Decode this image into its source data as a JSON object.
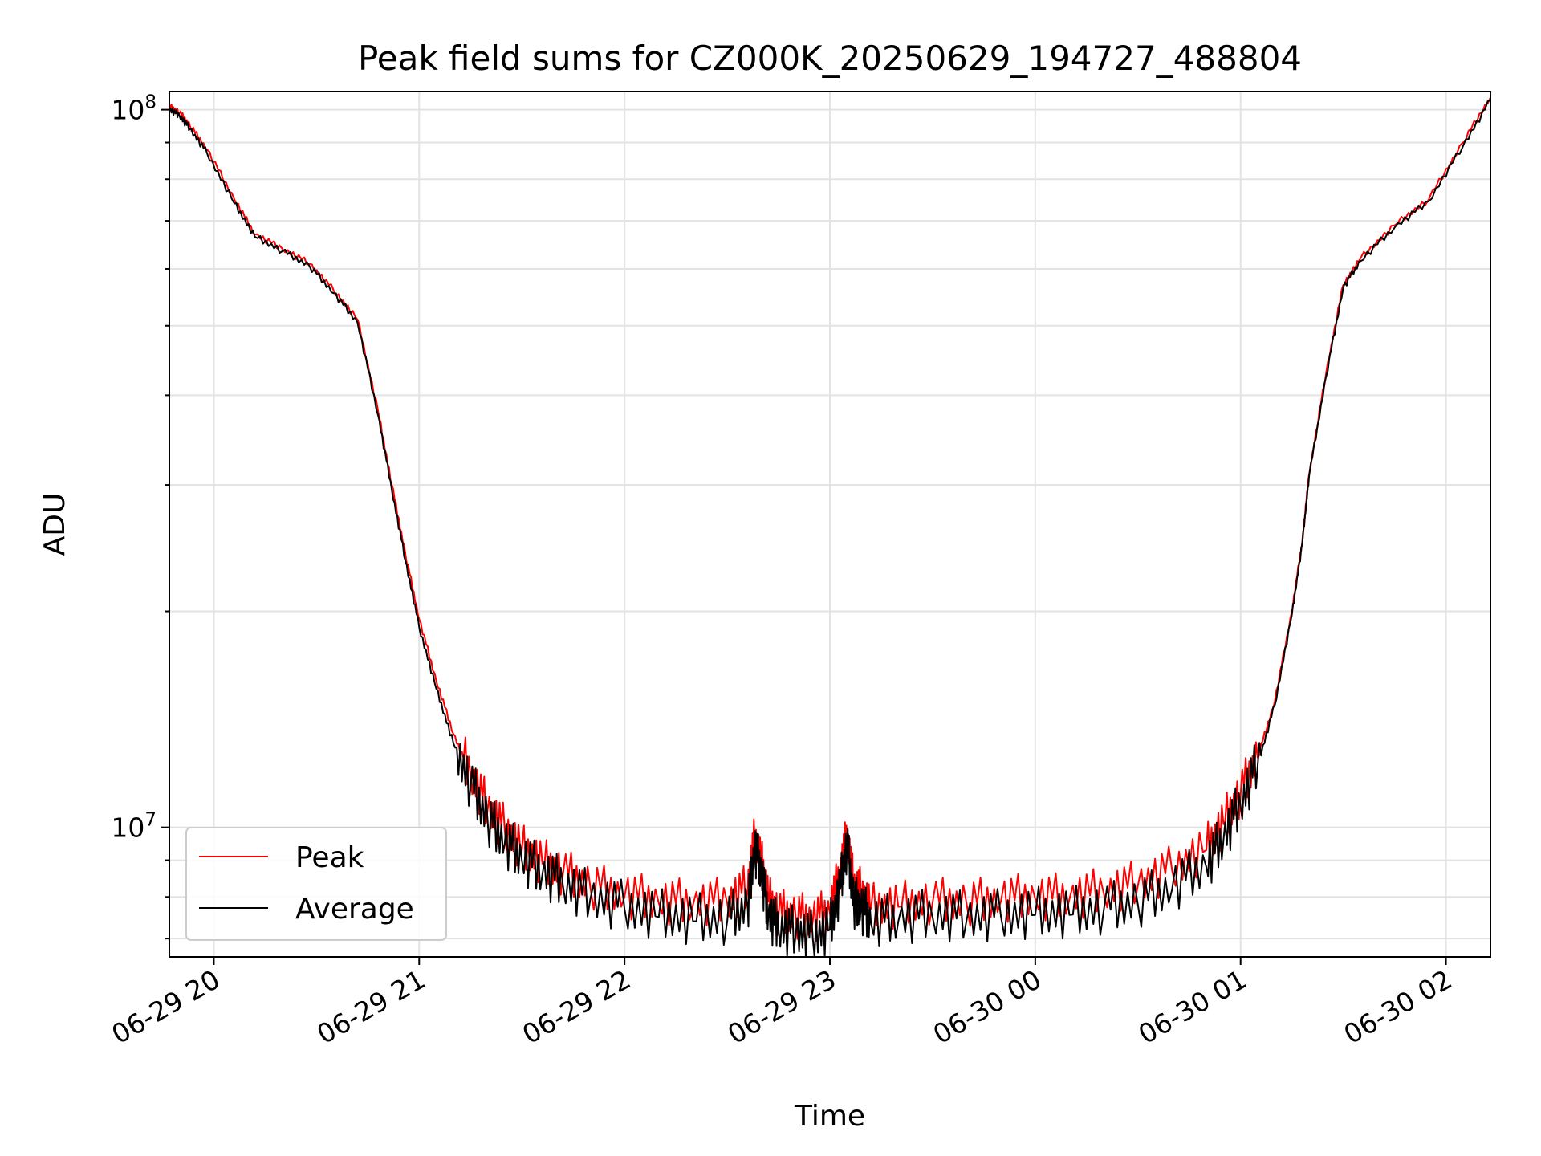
{
  "chart_data": {
    "type": "line",
    "title": "Peak field sums for CZ000K_20250629_194727_488804",
    "xlabel": "Time",
    "ylabel": "ADU",
    "y_scale": "log",
    "ylim": [
      6600000,
      106000000
    ],
    "x_tick_labels": [
      "06-29 20",
      "06-29 21",
      "06-29 22",
      "06-29 23",
      "06-30 00",
      "06-30 01",
      "06-30 02"
    ],
    "x_tick_times": [
      "2025-06-29 20:00",
      "2025-06-29 21:00",
      "2025-06-29 22:00",
      "2025-06-29 23:00",
      "2025-06-30 00:00",
      "2025-06-30 01:00",
      "2025-06-30 02:00"
    ],
    "xlim": [
      "2025-06-29 19:47",
      "2025-06-30 02:13"
    ],
    "y_ticks": [
      {
        "value": 10000000,
        "base": "10",
        "exp": "7"
      },
      {
        "value": 100000000,
        "base": "10",
        "exp": "8"
      }
    ],
    "y_minor_ticks": [
      7000000,
      8000000,
      9000000,
      20000000,
      30000000,
      40000000,
      50000000,
      60000000,
      70000000,
      80000000,
      90000000
    ],
    "grid": true,
    "legend_position": "lower-left",
    "x": [
      "2025-06-29 19:47",
      "2025-06-29 19:50",
      "2025-06-29 19:53",
      "2025-06-29 19:58",
      "2025-06-29 20:06",
      "2025-06-29 20:12",
      "2025-06-29 20:20",
      "2025-06-29 20:28",
      "2025-06-29 20:35",
      "2025-06-29 20:42",
      "2025-06-29 20:48",
      "2025-06-29 20:52",
      "2025-06-29 20:56",
      "2025-06-29 21:00",
      "2025-06-29 21:05",
      "2025-06-29 21:10",
      "2025-06-29 21:15",
      "2025-06-29 21:20",
      "2025-06-29 21:25",
      "2025-06-29 21:30",
      "2025-06-29 21:36",
      "2025-06-29 21:42",
      "2025-06-29 21:50",
      "2025-06-29 22:00",
      "2025-06-29 22:10",
      "2025-06-29 22:20",
      "2025-06-29 22:30",
      "2025-06-29 22:36",
      "2025-06-29 22:38",
      "2025-06-29 22:40",
      "2025-06-29 22:42",
      "2025-06-29 22:45",
      "2025-06-29 22:50",
      "2025-06-29 22:55",
      "2025-06-29 23:00",
      "2025-06-29 23:03",
      "2025-06-29 23:05",
      "2025-06-29 23:07",
      "2025-06-29 23:09",
      "2025-06-29 23:12",
      "2025-06-29 23:20",
      "2025-06-29 23:30",
      "2025-06-29 23:40",
      "2025-06-29 23:50",
      "2025-06-30 00:00",
      "2025-06-30 00:10",
      "2025-06-30 00:20",
      "2025-06-30 00:30",
      "2025-06-30 00:40",
      "2025-06-30 00:50",
      "2025-06-30 00:55",
      "2025-06-30 01:00",
      "2025-06-30 01:05",
      "2025-06-30 01:10",
      "2025-06-30 01:15",
      "2025-06-30 01:18",
      "2025-06-30 01:20",
      "2025-06-30 01:25",
      "2025-06-30 01:30",
      "2025-06-30 01:35",
      "2025-06-30 01:45",
      "2025-06-30 01:55",
      "2025-06-30 02:05",
      "2025-06-30 02:13"
    ],
    "series": [
      {
        "name": "Peak",
        "color": "#ff0000",
        "values": [
          101000000,
          99000000,
          95000000,
          88000000,
          75000000,
          67000000,
          64000000,
          61000000,
          56000000,
          51000000,
          38000000,
          30000000,
          24000000,
          19500000,
          16000000,
          13500000,
          11800000,
          10600000,
          9900000,
          9300000,
          8900000,
          8600000,
          8250000,
          8000000,
          7850000,
          7800000,
          7850000,
          8200000,
          9600000,
          8900000,
          7900000,
          7550000,
          7500000,
          7400000,
          7600000,
          8600000,
          9700000,
          8200000,
          8100000,
          7700000,
          7750000,
          7850000,
          7800000,
          7900000,
          7950000,
          7950000,
          8100000,
          8300000,
          8700000,
          9300000,
          10100000,
          11100000,
          12500000,
          15000000,
          20000000,
          25000000,
          31000000,
          43000000,
          57000000,
          62000000,
          69000000,
          75000000,
          90000000,
          104000000
        ]
      },
      {
        "name": "Average",
        "color": "#000000",
        "values": [
          100000000,
          98000000,
          94000000,
          87000000,
          74000000,
          66500000,
          63500000,
          60500000,
          55500000,
          50500000,
          37500000,
          29500000,
          23500000,
          19000000,
          15600000,
          13100000,
          11400000,
          10200000,
          9500000,
          9000000,
          8600000,
          8300000,
          7950000,
          7700000,
          7500000,
          7400000,
          7400000,
          7700000,
          9300000,
          8600000,
          7500000,
          7200000,
          7100000,
          7000000,
          7200000,
          8200000,
          9400000,
          7800000,
          7700000,
          7350000,
          7400000,
          7500000,
          7450000,
          7500000,
          7550000,
          7550000,
          7650000,
          7800000,
          8200000,
          8800000,
          9600000,
          10700000,
          12200000,
          14800000,
          19800000,
          24800000,
          30800000,
          42500000,
          56500000,
          61500000,
          68500000,
          74500000,
          89000000,
          103000000
        ]
      }
    ]
  }
}
